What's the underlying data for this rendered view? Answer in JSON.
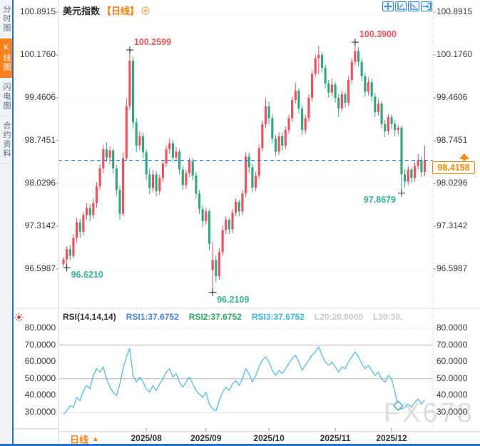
{
  "sidebar": {
    "items": [
      {
        "label": "分时图",
        "active": false
      },
      {
        "label": "K线图",
        "active": true
      },
      {
        "label": "闪电图",
        "active": false
      },
      {
        "label": "合约资料",
        "active": false
      }
    ]
  },
  "header": {
    "title": "美元指数",
    "timeframe_tag": "【日线】"
  },
  "toolbar": {
    "icons": [
      "move-tool",
      "axis-scale-left",
      "axis-scale-right",
      "export-view"
    ]
  },
  "price_axis": {
    "labels": [
      "100.8915",
      "100.1760",
      "99.4606",
      "98.7451",
      "98.0296",
      "97.3142",
      "96.5987"
    ],
    "max": 100.8915,
    "min": 96.5987
  },
  "current_price": {
    "value": "98.4158",
    "price": 98.4158,
    "line_color": "#1f7ae0",
    "box_color": "#ff8a00"
  },
  "annotations": [
    {
      "text": "100.2599",
      "price": 100.2599,
      "candle_index": 20,
      "kind": "high",
      "side": "right",
      "color": "red"
    },
    {
      "text": "100.3900",
      "price": 100.39,
      "candle_index": 88,
      "kind": "high",
      "side": "right",
      "color": "red"
    },
    {
      "text": "96.6210",
      "price": 96.621,
      "candle_index": 1,
      "kind": "low",
      "side": "right",
      "color": "green"
    },
    {
      "text": "96.2109",
      "price": 96.2109,
      "candle_index": 45,
      "kind": "low",
      "side": "right",
      "color": "green"
    },
    {
      "text": "97.8679",
      "price": 97.8679,
      "candle_index": 102,
      "kind": "low",
      "side": "left",
      "color": "green"
    }
  ],
  "chart_data": {
    "type": "candlestick",
    "title": "美元指数 日线",
    "ylim": [
      96.5987,
      100.8915
    ],
    "up_color": "#ef5360",
    "down_color": "#33a883",
    "x_axis": {
      "labels": [
        "2025/08",
        "2025/09",
        "2025/10",
        "2025/11",
        "2025/12"
      ],
      "positions": [
        25,
        43,
        62,
        82,
        99
      ]
    },
    "candles": [
      [
        96.68,
        96.8,
        96.64,
        96.76
      ],
      [
        96.76,
        96.98,
        96.621,
        96.93
      ],
      [
        96.93,
        97.0,
        96.74,
        96.82
      ],
      [
        96.82,
        97.18,
        96.78,
        97.12
      ],
      [
        97.12,
        97.45,
        97.05,
        97.38
      ],
      [
        97.38,
        97.44,
        97.12,
        97.22
      ],
      [
        97.22,
        97.55,
        97.16,
        97.5
      ],
      [
        97.5,
        97.7,
        97.42,
        97.62
      ],
      [
        97.62,
        97.68,
        97.4,
        97.5
      ],
      [
        97.5,
        97.78,
        97.44,
        97.7
      ],
      [
        97.7,
        98.05,
        97.62,
        97.98
      ],
      [
        97.98,
        98.35,
        97.92,
        98.28
      ],
      [
        98.28,
        98.68,
        98.2,
        98.6
      ],
      [
        98.6,
        98.72,
        98.38,
        98.46
      ],
      [
        98.46,
        98.65,
        98.35,
        98.58
      ],
      [
        98.58,
        98.62,
        98.2,
        98.28
      ],
      [
        98.28,
        98.34,
        97.82,
        97.92
      ],
      [
        97.92,
        98.0,
        97.42,
        97.52
      ],
      [
        97.52,
        98.55,
        97.48,
        98.45
      ],
      [
        98.45,
        99.45,
        98.4,
        99.32
      ],
      [
        99.32,
        100.2599,
        99.25,
        100.08
      ],
      [
        100.08,
        100.15,
        98.95,
        99.05
      ],
      [
        99.05,
        99.12,
        98.55,
        98.66
      ],
      [
        98.66,
        98.9,
        98.58,
        98.82
      ],
      [
        98.82,
        98.88,
        98.45,
        98.55
      ],
      [
        98.55,
        98.6,
        98.08,
        98.18
      ],
      [
        98.18,
        98.28,
        97.85,
        97.95
      ],
      [
        97.95,
        98.25,
        97.88,
        98.18
      ],
      [
        98.18,
        98.24,
        97.82,
        97.9
      ],
      [
        97.9,
        98.18,
        97.84,
        98.12
      ],
      [
        98.12,
        98.42,
        98.05,
        98.36
      ],
      [
        98.36,
        98.66,
        98.3,
        98.6
      ],
      [
        98.6,
        98.78,
        98.52,
        98.7
      ],
      [
        98.7,
        98.76,
        98.38,
        98.46
      ],
      [
        98.46,
        98.64,
        98.4,
        98.56
      ],
      [
        98.56,
        98.6,
        98.18,
        98.26
      ],
      [
        98.26,
        98.32,
        97.92,
        98.0
      ],
      [
        98.0,
        98.26,
        97.94,
        98.2
      ],
      [
        98.2,
        98.46,
        98.14,
        98.4
      ],
      [
        98.4,
        98.45,
        98.08,
        98.16
      ],
      [
        98.16,
        98.22,
        97.78,
        97.86
      ],
      [
        97.86,
        97.92,
        97.52,
        97.6
      ],
      [
        97.6,
        97.66,
        97.3,
        97.4
      ],
      [
        97.4,
        97.62,
        97.34,
        97.56
      ],
      [
        97.56,
        97.6,
        96.92,
        97.02
      ],
      [
        96.58,
        97.05,
        96.2109,
        96.75
      ],
      [
        96.75,
        96.82,
        96.38,
        96.48
      ],
      [
        96.48,
        96.95,
        96.42,
        96.88
      ],
      [
        96.88,
        97.32,
        96.82,
        97.25
      ],
      [
        97.25,
        97.48,
        97.18,
        97.42
      ],
      [
        97.42,
        97.46,
        97.18,
        97.26
      ],
      [
        97.26,
        97.6,
        97.2,
        97.54
      ],
      [
        97.54,
        97.78,
        97.48,
        97.72
      ],
      [
        97.72,
        97.76,
        97.48,
        97.56
      ],
      [
        97.56,
        97.92,
        97.5,
        97.86
      ],
      [
        97.86,
        98.55,
        97.8,
        98.48
      ],
      [
        98.48,
        98.54,
        98.2,
        98.3
      ],
      [
        98.3,
        98.36,
        97.88,
        97.96
      ],
      [
        97.96,
        98.22,
        97.9,
        98.16
      ],
      [
        98.16,
        98.68,
        98.1,
        98.62
      ],
      [
        98.62,
        99.08,
        98.56,
        99.02
      ],
      [
        99.02,
        99.45,
        98.96,
        99.32
      ],
      [
        99.32,
        99.4,
        99.02,
        99.12
      ],
      [
        99.12,
        99.18,
        98.7,
        98.78
      ],
      [
        98.78,
        98.84,
        98.48,
        98.56
      ],
      [
        98.56,
        98.88,
        98.5,
        98.82
      ],
      [
        98.82,
        98.88,
        98.58,
        98.66
      ],
      [
        98.66,
        98.98,
        98.6,
        98.92
      ],
      [
        98.92,
        99.18,
        98.86,
        99.12
      ],
      [
        99.12,
        99.48,
        99.06,
        99.42
      ],
      [
        99.42,
        99.72,
        99.36,
        99.58
      ],
      [
        99.58,
        99.62,
        99.2,
        99.28
      ],
      [
        99.28,
        99.34,
        98.84,
        98.92
      ],
      [
        98.92,
        99.18,
        98.86,
        99.12
      ],
      [
        99.12,
        99.52,
        99.06,
        99.46
      ],
      [
        99.46,
        99.92,
        99.4,
        99.86
      ],
      [
        99.86,
        100.18,
        99.8,
        100.12
      ],
      [
        100.12,
        100.33,
        99.85,
        100.18
      ],
      [
        100.18,
        100.22,
        99.88,
        99.96
      ],
      [
        99.96,
        100.02,
        99.62,
        99.7
      ],
      [
        99.7,
        99.76,
        99.46,
        99.55
      ],
      [
        99.55,
        99.78,
        99.48,
        99.68
      ],
      [
        99.68,
        99.72,
        99.38,
        99.46
      ],
      [
        99.46,
        99.52,
        99.14,
        99.28
      ],
      [
        99.28,
        99.58,
        99.22,
        99.52
      ],
      [
        99.52,
        99.56,
        99.3,
        99.38
      ],
      [
        99.38,
        99.82,
        99.32,
        99.76
      ],
      [
        99.76,
        100.12,
        99.7,
        100.06
      ],
      [
        100.06,
        100.39,
        100.0,
        100.24
      ],
      [
        100.24,
        100.3,
        99.98,
        100.06
      ],
      [
        100.06,
        100.12,
        99.74,
        99.82
      ],
      [
        99.82,
        99.88,
        99.48,
        99.56
      ],
      [
        99.56,
        99.8,
        99.5,
        99.72
      ],
      [
        99.72,
        99.78,
        99.4,
        99.48
      ],
      [
        99.48,
        99.54,
        99.14,
        99.22
      ],
      [
        99.22,
        99.44,
        99.16,
        99.36
      ],
      [
        99.36,
        99.4,
        98.95,
        99.02
      ],
      [
        99.02,
        99.08,
        98.8,
        98.9
      ],
      [
        98.9,
        99.2,
        98.84,
        99.14
      ],
      [
        99.14,
        99.18,
        98.94,
        99.02
      ],
      [
        99.02,
        99.08,
        98.82,
        98.92
      ],
      [
        98.92,
        99.0,
        98.84,
        98.96
      ],
      [
        98.96,
        99.0,
        97.8679,
        98.18
      ],
      [
        98.18,
        98.26,
        97.96,
        98.06
      ],
      [
        98.06,
        98.32,
        98.0,
        98.26
      ],
      [
        98.26,
        98.3,
        98.04,
        98.12
      ],
      [
        98.12,
        98.38,
        98.06,
        98.32
      ],
      [
        98.32,
        98.52,
        98.26,
        98.42
      ],
      [
        98.42,
        98.48,
        98.14,
        98.22
      ],
      [
        98.22,
        98.66,
        98.16,
        98.4158
      ]
    ],
    "rsi": {
      "line_color": "#58bce8",
      "ylim": [
        20,
        85
      ],
      "grid_levels": [
        80,
        70,
        50,
        30
      ],
      "marker_index": 101,
      "values": [
        29,
        31,
        34,
        33,
        39,
        37,
        43,
        46,
        44,
        52,
        56,
        54,
        57,
        50,
        45,
        42,
        40,
        47,
        56,
        63,
        68,
        52,
        48,
        51,
        48,
        44,
        42,
        46,
        43,
        47,
        50,
        54,
        56,
        51,
        53,
        48,
        45,
        48,
        51,
        47,
        43,
        41,
        39,
        42,
        35,
        32,
        31,
        37,
        42,
        45,
        43,
        47,
        49,
        46,
        50,
        56,
        53,
        48,
        52,
        57,
        61,
        63,
        60,
        55,
        52,
        55,
        53,
        56,
        59,
        62,
        64,
        60,
        55,
        58,
        61,
        64,
        66,
        69,
        64,
        60,
        58,
        60,
        57,
        54,
        57,
        56,
        60,
        63,
        66,
        63,
        59,
        56,
        58,
        55,
        52,
        54,
        50,
        48,
        52,
        50,
        42,
        34,
        32,
        33,
        35,
        33,
        36,
        38,
        35,
        37.7
      ]
    }
  },
  "rsi_panel": {
    "header": {
      "name": "RSI(14,14,14)",
      "rsi1": "RSI1:37.6752",
      "rsi2": "RSI2:37.6752",
      "rsi3": "RSI3:37.6752",
      "l20": "L20:20.0000",
      "l30": "L30:30."
    },
    "axis_labels": [
      "80.0000",
      "70.0000",
      "60.0000",
      "50.0000",
      "40.0000",
      "30.0000"
    ]
  },
  "bottom_bar": {
    "timeframe_tab": "日线",
    "arrow": "▲"
  },
  "watermark": "FX678"
}
